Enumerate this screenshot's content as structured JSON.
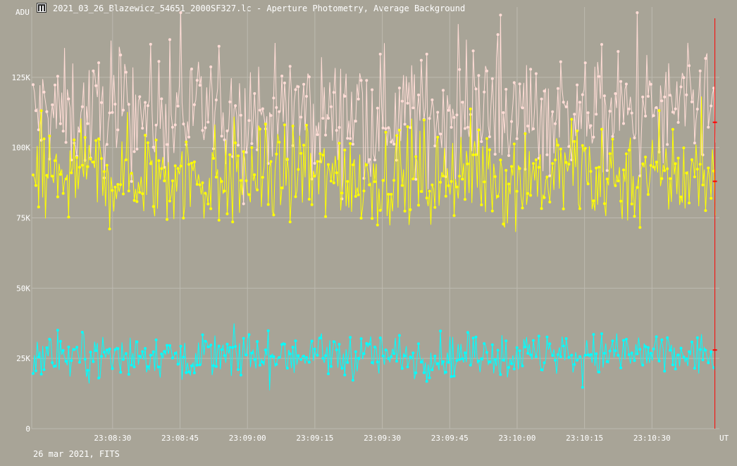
{
  "window": {
    "title": "2021_03_26_Blazewicz_54651_2000SF327.lc - Aperture Photometry, Average Background",
    "icon": "app-logo-icon"
  },
  "footer": {
    "date_source": "26 mar 2021, FITS"
  },
  "colors": {
    "background": "#a8a497",
    "grid": "#bdbab0",
    "text": "#ffffff",
    "cursor": "#ff0000",
    "series_pink": "#ffdcd6",
    "series_yellow": "#ffff00",
    "series_cyan": "#00ffff"
  },
  "chart_data": {
    "type": "line",
    "ylabel": "ADU",
    "xlabel": "UT",
    "x_start": "23:08:12",
    "x_end": "23:10:45",
    "ylim": [
      0,
      150000
    ],
    "y_ticks": [
      {
        "value": 0,
        "label": "0"
      },
      {
        "value": 25000,
        "label": "25K"
      },
      {
        "value": 50000,
        "label": "50K"
      },
      {
        "value": 75000,
        "label": "75K"
      },
      {
        "value": 100000,
        "label": "100K"
      },
      {
        "value": 125000,
        "label": "125K"
      }
    ],
    "x_ticks": [
      "23:08:30",
      "23:08:45",
      "23:09:00",
      "23:09:15",
      "23:09:30",
      "23:09:45",
      "23:10:00",
      "23:10:15",
      "23:10:30"
    ],
    "grid": true,
    "cursor_x": "23:10:44",
    "series": [
      {
        "color": "#ffdcd6",
        "mean": 112000,
        "spread": 17000,
        "min_clip": 80000,
        "max_clip": 148000
      },
      {
        "color": "#ffff00",
        "mean": 90000,
        "spread": 15000,
        "min_clip": 58000,
        "max_clip": 140000
      },
      {
        "color": "#00ffff",
        "mean": 26000,
        "spread": 6500,
        "min_clip": 9000,
        "max_clip": 50000
      }
    ],
    "point_count": 500,
    "cursor_markers": [
      {
        "series": 0,
        "value": 109000
      },
      {
        "series": 1,
        "value": 88000
      },
      {
        "series": 2,
        "value": 28000
      }
    ]
  }
}
